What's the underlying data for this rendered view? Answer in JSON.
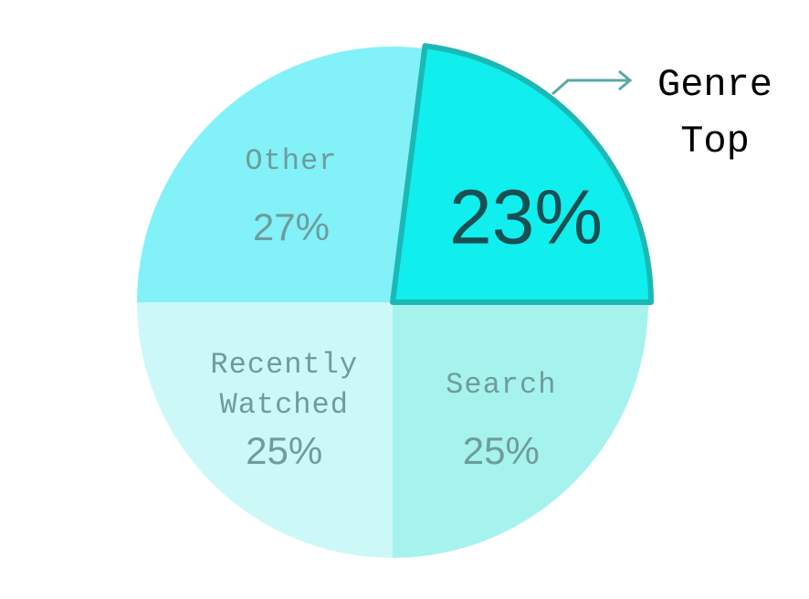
{
  "chart_data": {
    "type": "pie",
    "categories": [
      "Other",
      "Genre Top",
      "Search",
      "Recently Watched"
    ],
    "values": [
      27,
      23,
      25,
      25
    ],
    "value_labels": [
      "27%",
      "23%",
      "25%",
      "25%"
    ],
    "colors": [
      "#82f1f8",
      "#10eeee",
      "#a6f3ee",
      "#cdf8f8"
    ],
    "highlight": 1
  }
}
